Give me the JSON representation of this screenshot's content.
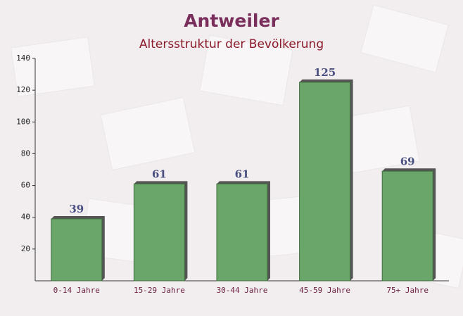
{
  "chart_data": {
    "type": "bar",
    "title": "Antweiler",
    "subtitle": "Altersstruktur der Bevölkerung",
    "categories": [
      "0-14 Jahre",
      "15-29 Jahre",
      "30-44 Jahre",
      "45-59 Jahre",
      "75+ Jahre"
    ],
    "values": [
      39,
      61,
      61,
      125,
      69
    ],
    "color": "#6aa56a",
    "ylim": [
      0,
      140
    ],
    "yticks": [
      20,
      40,
      60,
      80,
      100,
      120,
      140
    ]
  }
}
